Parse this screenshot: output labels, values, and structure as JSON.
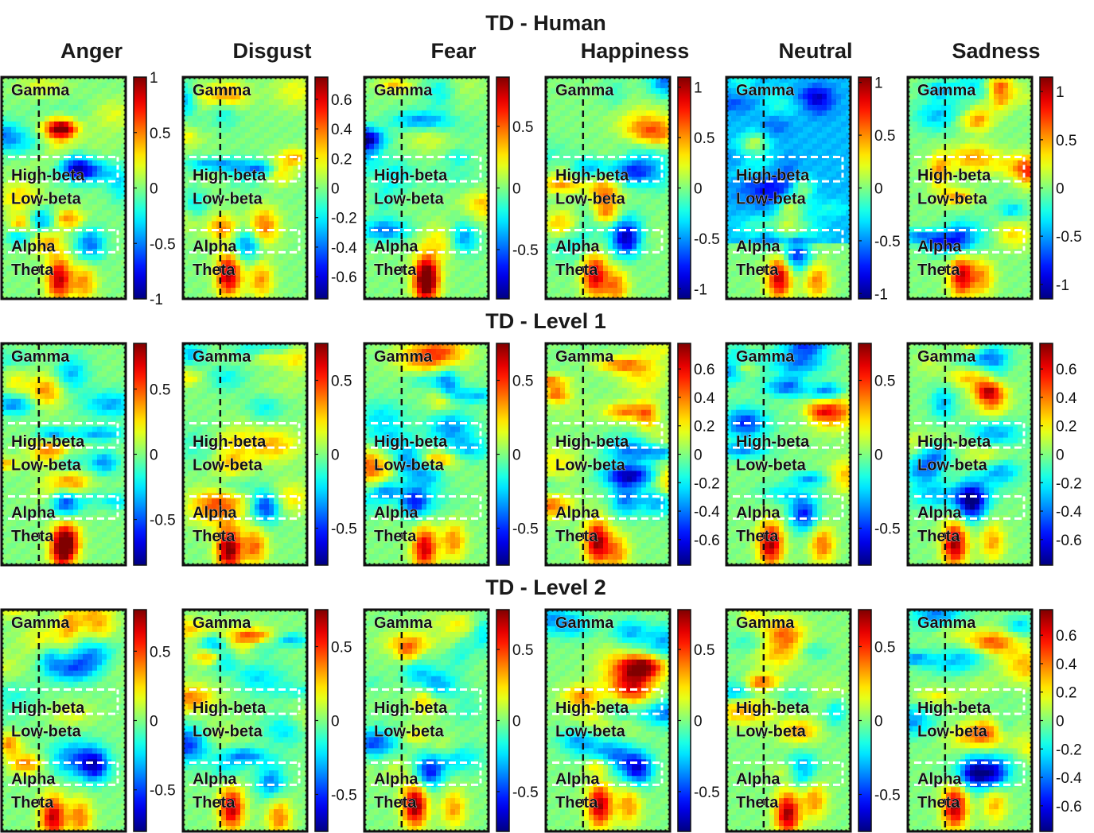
{
  "chart_data": {
    "type": "heatmap",
    "colormap": "jet",
    "columns": [
      "Anger",
      "Disgust",
      "Fear",
      "Happiness",
      "Neutral",
      "Sadness"
    ],
    "rows": [
      {
        "title": "TD - Human",
        "panels": [
          {
            "emotion": "Anger",
            "clim": [
              -1,
              1
            ],
            "ticks": [
              "1",
              "0.5",
              "0",
              "-0.5",
              "-1"
            ],
            "tick_values": [
              1,
              0.5,
              0,
              -0.5,
              -1
            ]
          },
          {
            "emotion": "Disgust",
            "clim": [
              -0.75,
              0.75
            ],
            "ticks": [
              "0.6",
              "0.4",
              "0.2",
              "0",
              "-0.2",
              "-0.4",
              "-0.6"
            ],
            "tick_values": [
              0.6,
              0.4,
              0.2,
              0,
              -0.2,
              -0.4,
              -0.6
            ]
          },
          {
            "emotion": "Fear",
            "clim": [
              -0.9,
              0.9
            ],
            "ticks": [
              "0.5",
              "0",
              "-0.5"
            ],
            "tick_values": [
              0.5,
              0,
              -0.5
            ]
          },
          {
            "emotion": "Happiness",
            "clim": [
              -1.1,
              1.1
            ],
            "ticks": [
              "1",
              "0.5",
              "0",
              "-0.5",
              "-1"
            ],
            "tick_values": [
              1,
              0.5,
              0,
              -0.5,
              -1
            ]
          },
          {
            "emotion": "Neutral",
            "clim": [
              -1.05,
              1.05
            ],
            "ticks": [
              "1",
              "0.5",
              "0",
              "-0.5",
              "-1"
            ],
            "tick_values": [
              1,
              0.5,
              0,
              -0.5,
              -1
            ]
          },
          {
            "emotion": "Sadness",
            "clim": [
              -1.15,
              1.15
            ],
            "ticks": [
              "1",
              "0.5",
              "0",
              "-0.5",
              "-1"
            ],
            "tick_values": [
              1,
              0.5,
              0,
              -0.5,
              -1
            ]
          }
        ]
      },
      {
        "title": "TD - Level 1",
        "panels": [
          {
            "emotion": "Anger",
            "clim": [
              -0.85,
              0.85
            ],
            "ticks": [
              "0.5",
              "0",
              "-0.5"
            ],
            "tick_values": [
              0.5,
              0,
              -0.5
            ]
          },
          {
            "emotion": "Disgust",
            "clim": [
              -0.75,
              0.75
            ],
            "ticks": [
              "0.5",
              "0",
              "-0.5"
            ],
            "tick_values": [
              0.5,
              0,
              -0.5
            ]
          },
          {
            "emotion": "Fear",
            "clim": [
              -0.75,
              0.75
            ],
            "ticks": [
              "0.5",
              "0",
              "-0.5"
            ],
            "tick_values": [
              0.5,
              0,
              -0.5
            ]
          },
          {
            "emotion": "Happiness",
            "clim": [
              -0.78,
              0.78
            ],
            "ticks": [
              "0.6",
              "0.4",
              "0.2",
              "0",
              "-0.2",
              "-0.4",
              "-0.6"
            ],
            "tick_values": [
              0.6,
              0.4,
              0.2,
              0,
              -0.2,
              -0.4,
              -0.6
            ]
          },
          {
            "emotion": "Neutral",
            "clim": [
              -0.75,
              0.75
            ],
            "ticks": [
              "0.5",
              "0",
              "-0.5"
            ],
            "tick_values": [
              0.5,
              0,
              -0.5
            ]
          },
          {
            "emotion": "Sadness",
            "clim": [
              -0.78,
              0.78
            ],
            "ticks": [
              "0.6",
              "0.4",
              "0.2",
              "0",
              "-0.2",
              "-0.4",
              "-0.6"
            ],
            "tick_values": [
              0.6,
              0.4,
              0.2,
              0,
              -0.2,
              -0.4,
              -0.6
            ]
          }
        ]
      },
      {
        "title": "TD - Level 2",
        "panels": [
          {
            "emotion": "Anger",
            "clim": [
              -0.8,
              0.8
            ],
            "ticks": [
              "0.5",
              "0",
              "-0.5"
            ],
            "tick_values": [
              0.5,
              0,
              -0.5
            ]
          },
          {
            "emotion": "Disgust",
            "clim": [
              -0.75,
              0.75
            ],
            "ticks": [
              "0.5",
              "0",
              "-0.5"
            ],
            "tick_values": [
              0.5,
              0,
              -0.5
            ]
          },
          {
            "emotion": "Fear",
            "clim": [
              -0.78,
              0.78
            ],
            "ticks": [
              "0.5",
              "0",
              "-0.5"
            ],
            "tick_values": [
              0.5,
              0,
              -0.5
            ]
          },
          {
            "emotion": "Happiness",
            "clim": [
              -0.78,
              0.78
            ],
            "ticks": [
              "0.5",
              "0",
              "-0.5"
            ],
            "tick_values": [
              0.5,
              0,
              -0.5
            ]
          },
          {
            "emotion": "Neutral",
            "clim": [
              -0.75,
              0.75
            ],
            "ticks": [
              "0.5",
              "0",
              "-0.5"
            ],
            "tick_values": [
              0.5,
              0,
              -0.5
            ]
          },
          {
            "emotion": "Sadness",
            "clim": [
              -0.78,
              0.78
            ],
            "ticks": [
              "0.6",
              "0.4",
              "0.2",
              "0",
              "-0.2",
              "-0.4",
              "-0.6"
            ],
            "tick_values": [
              0.6,
              0.4,
              0.2,
              0,
              -0.2,
              -0.4,
              -0.6
            ]
          }
        ]
      }
    ],
    "bands": [
      "Gamma",
      "High-beta",
      "Low-beta",
      "Alpha",
      "Theta"
    ],
    "annotations": {
      "stimulus_onset_line": "vertical black dashed",
      "band_boundaries": "horizontal white dashed"
    }
  }
}
